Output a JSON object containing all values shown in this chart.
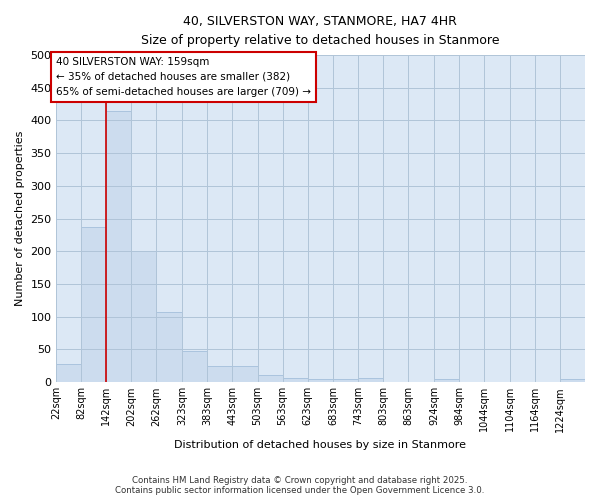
{
  "title": "40, SILVERSTON WAY, STANMORE, HA7 4HR",
  "subtitle": "Size of property relative to detached houses in Stanmore",
  "xlabel": "Distribution of detached houses by size in Stanmore",
  "ylabel": "Number of detached properties",
  "bar_color": "#ccdcee",
  "bar_edge_color": "#aac4de",
  "grid_color": "#b0c4d8",
  "background_color": "#ffffff",
  "plot_bg_color": "#dce8f5",
  "annotation_box_color": "#cc0000",
  "vline_color": "#cc0000",
  "annotation_text": "40 SILVERSTON WAY: 159sqm\n← 35% of detached houses are smaller (382)\n65% of semi-detached houses are larger (709) →",
  "bins": [
    22,
    82,
    142,
    202,
    262,
    323,
    383,
    443,
    503,
    563,
    623,
    683,
    743,
    803,
    863,
    924,
    984,
    1044,
    1104,
    1164,
    1224
  ],
  "bin_width": 60,
  "counts": [
    28,
    237,
    415,
    201,
    107,
    48,
    25,
    25,
    11,
    6,
    5,
    5,
    6,
    0,
    0,
    4,
    0,
    0,
    0,
    0,
    5
  ],
  "ylim": [
    0,
    500
  ],
  "yticks": [
    0,
    50,
    100,
    150,
    200,
    250,
    300,
    350,
    400,
    450,
    500
  ],
  "footer_line1": "Contains HM Land Registry data © Crown copyright and database right 2025.",
  "footer_line2": "Contains public sector information licensed under the Open Government Licence 3.0.",
  "vline_x": 142
}
